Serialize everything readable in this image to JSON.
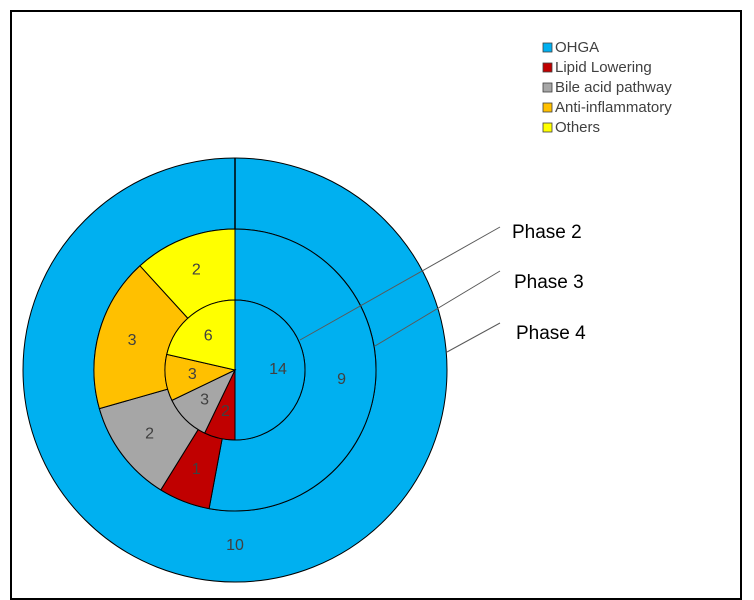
{
  "chart_data": {
    "type": "pie",
    "subtype": "nested-donut",
    "title": "",
    "categories": [
      "OHGA",
      "Lipid Lowering",
      "Bile acid pathway",
      "Anti-inflammatory",
      "Others"
    ],
    "colors": {
      "OHGA": "#00B0F0",
      "Lipid Lowering": "#C00000",
      "Bile acid pathway": "#A6A6A6",
      "Anti-inflammatory": "#FFC000",
      "Others": "#FFFF00"
    },
    "legend_position": "top-right",
    "series": [
      {
        "name": "Phase 2",
        "ring": "inner",
        "values": [
          14,
          2,
          3,
          3,
          6
        ]
      },
      {
        "name": "Phase 3",
        "ring": "middle",
        "values": [
          9,
          1,
          2,
          3,
          2
        ]
      },
      {
        "name": "Phase 4",
        "ring": "outer",
        "values": [
          10,
          0,
          0,
          0,
          0
        ]
      }
    ]
  }
}
